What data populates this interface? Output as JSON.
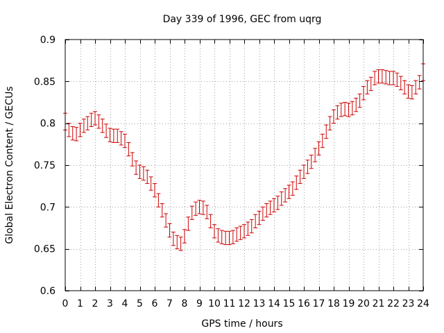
{
  "chart_data": {
    "type": "scatter",
    "title": "Day 339 of 1996, GEC from uqrg",
    "xlabel": "GPS time / hours",
    "ylabel": "Global Electron Content / GECUs",
    "xlim": [
      0,
      24
    ],
    "ylim": [
      0.6,
      0.9
    ],
    "xticks": [
      "0",
      "1",
      "2",
      "3",
      "4",
      "5",
      "6",
      "7",
      "8",
      "9",
      "10",
      "11",
      "12",
      "13",
      "14",
      "15",
      "16",
      "17",
      "18",
      "19",
      "20",
      "21",
      "22",
      "23",
      "24"
    ],
    "yticks": [
      "0.6",
      "0.65",
      "0.7",
      "0.75",
      "0.8",
      "0.85",
      "0.9"
    ],
    "grid": true,
    "error_bars": true,
    "color": "#cc0000",
    "x": [
      0.0,
      0.25,
      0.5,
      0.75,
      1.0,
      1.25,
      1.5,
      1.75,
      2.0,
      2.25,
      2.5,
      2.75,
      3.0,
      3.25,
      3.5,
      3.75,
      4.0,
      4.25,
      4.5,
      4.75,
      5.0,
      5.25,
      5.5,
      5.75,
      6.0,
      6.25,
      6.5,
      6.75,
      7.0,
      7.25,
      7.5,
      7.75,
      8.0,
      8.25,
      8.5,
      8.75,
      9.0,
      9.25,
      9.5,
      9.75,
      10.0,
      10.25,
      10.5,
      10.75,
      11.0,
      11.25,
      11.5,
      11.75,
      12.0,
      12.25,
      12.5,
      12.75,
      13.0,
      13.25,
      13.5,
      13.75,
      14.0,
      14.25,
      14.5,
      14.75,
      15.0,
      15.25,
      15.5,
      15.75,
      16.0,
      16.25,
      16.5,
      16.75,
      17.0,
      17.25,
      17.5,
      17.75,
      18.0,
      18.25,
      18.5,
      18.75,
      19.0,
      19.25,
      19.5,
      19.75,
      20.0,
      20.25,
      20.5,
      20.75,
      21.0,
      21.25,
      21.5,
      21.75,
      22.0,
      22.25,
      22.5,
      22.75,
      23.0,
      23.25,
      23.5,
      23.75,
      24.0
    ],
    "values": [
      0.802,
      0.792,
      0.788,
      0.787,
      0.792,
      0.797,
      0.8,
      0.804,
      0.806,
      0.802,
      0.797,
      0.791,
      0.786,
      0.785,
      0.785,
      0.782,
      0.779,
      0.769,
      0.757,
      0.747,
      0.742,
      0.74,
      0.736,
      0.728,
      0.72,
      0.708,
      0.696,
      0.684,
      0.672,
      0.662,
      0.658,
      0.656,
      0.665,
      0.68,
      0.693,
      0.698,
      0.7,
      0.699,
      0.694,
      0.683,
      0.671,
      0.666,
      0.664,
      0.663,
      0.663,
      0.664,
      0.667,
      0.669,
      0.671,
      0.674,
      0.677,
      0.683,
      0.687,
      0.692,
      0.696,
      0.699,
      0.702,
      0.705,
      0.71,
      0.714,
      0.718,
      0.722,
      0.729,
      0.736,
      0.742,
      0.748,
      0.754,
      0.762,
      0.77,
      0.779,
      0.79,
      0.8,
      0.808,
      0.813,
      0.816,
      0.817,
      0.816,
      0.818,
      0.822,
      0.827,
      0.836,
      0.843,
      0.847,
      0.854,
      0.856,
      0.856,
      0.855,
      0.854,
      0.854,
      0.852,
      0.848,
      0.843,
      0.838,
      0.837,
      0.843,
      0.849,
      0.861
    ],
    "errors": [
      0.01,
      0.008,
      0.008,
      0.008,
      0.008,
      0.008,
      0.008,
      0.008,
      0.008,
      0.008,
      0.008,
      0.008,
      0.008,
      0.008,
      0.008,
      0.008,
      0.008,
      0.008,
      0.008,
      0.008,
      0.008,
      0.008,
      0.008,
      0.008,
      0.008,
      0.008,
      0.008,
      0.008,
      0.008,
      0.008,
      0.008,
      0.008,
      0.008,
      0.008,
      0.008,
      0.008,
      0.008,
      0.008,
      0.008,
      0.008,
      0.008,
      0.008,
      0.008,
      0.008,
      0.008,
      0.008,
      0.008,
      0.008,
      0.008,
      0.008,
      0.008,
      0.008,
      0.008,
      0.008,
      0.008,
      0.008,
      0.008,
      0.008,
      0.008,
      0.008,
      0.008,
      0.008,
      0.008,
      0.008,
      0.008,
      0.008,
      0.008,
      0.008,
      0.008,
      0.008,
      0.008,
      0.008,
      0.008,
      0.008,
      0.008,
      0.008,
      0.008,
      0.008,
      0.008,
      0.008,
      0.008,
      0.008,
      0.008,
      0.008,
      0.008,
      0.008,
      0.008,
      0.008,
      0.008,
      0.008,
      0.008,
      0.008,
      0.008,
      0.008,
      0.008,
      0.008,
      0.01
    ]
  }
}
